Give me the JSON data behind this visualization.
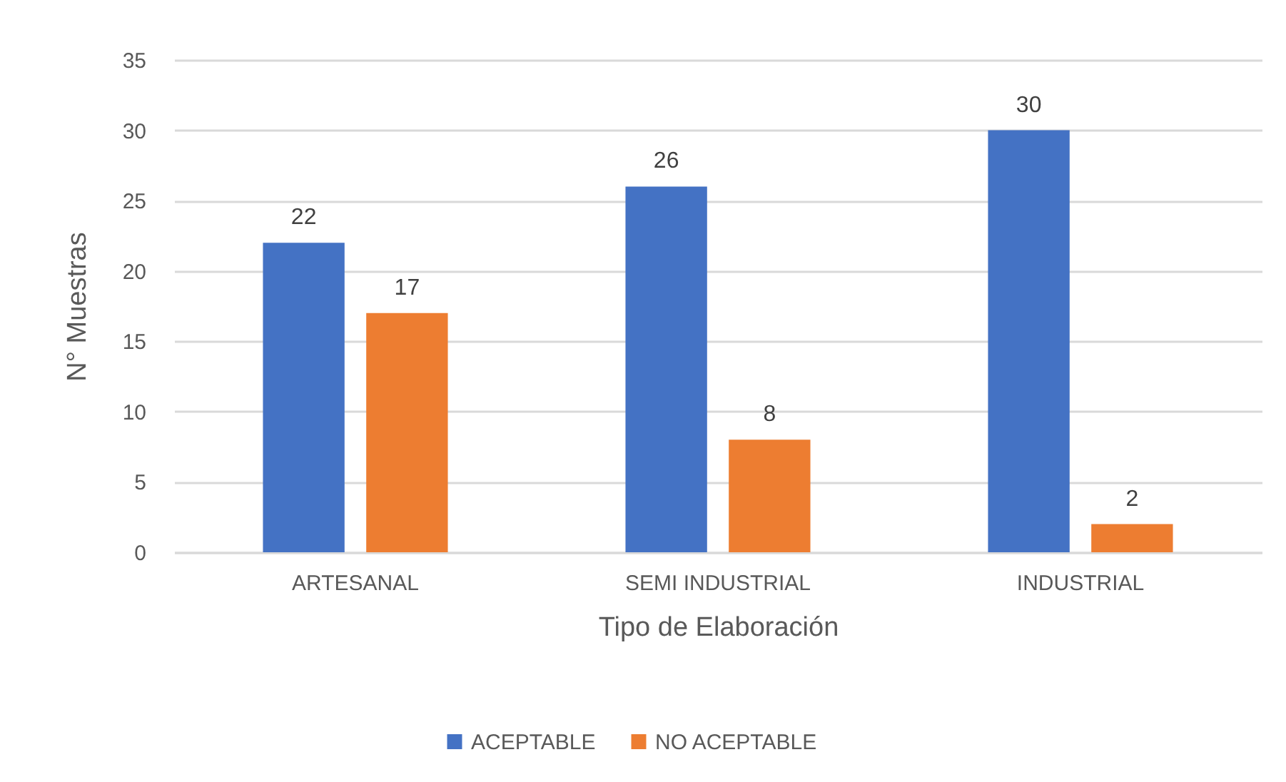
{
  "chart_data": {
    "type": "bar",
    "categories": [
      "ARTESANAL",
      "SEMI INDUSTRIAL",
      "INDUSTRIAL"
    ],
    "xlabel": "Tipo de Elaboración",
    "ylabel": "N° Muestras",
    "series": [
      {
        "name": "ACEPTABLE",
        "color": "#4472c4",
        "values": [
          22,
          26,
          30
        ]
      },
      {
        "name": "NO ACEPTABLE",
        "color": "#ed7d31",
        "values": [
          17,
          8,
          2
        ]
      }
    ],
    "ylim": [
      0,
      35
    ],
    "yticks": [
      0,
      5,
      10,
      15,
      20,
      25,
      30,
      35
    ],
    "grid": "y",
    "legend": "bottom",
    "data_labels": true
  }
}
